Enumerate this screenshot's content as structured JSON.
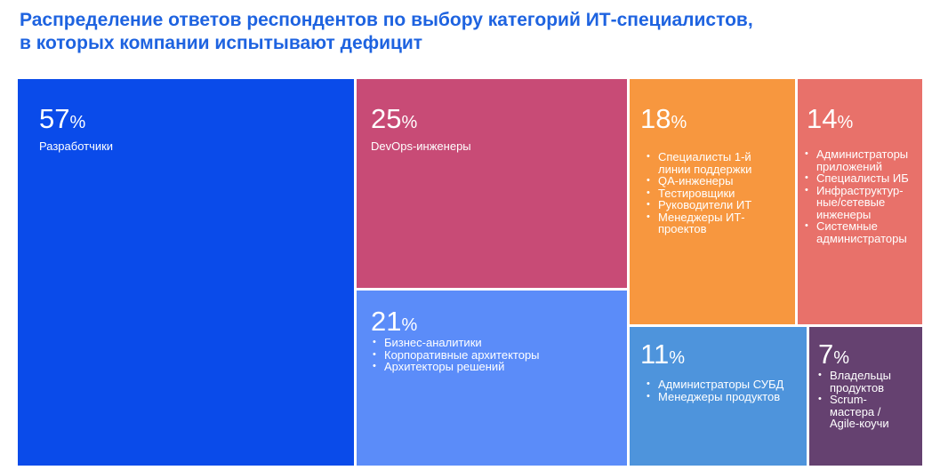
{
  "chart_data": {
    "type": "treemap",
    "title_lines": [
      "Распределение ответов респондентов по выбору категорий ИТ-специалистов,",
      "в которых компании испытывают дефицит"
    ],
    "unit": "%",
    "tiles": [
      {
        "value": 57,
        "color": "#0A4BEA",
        "label": "Разработчики",
        "items": []
      },
      {
        "value": 25,
        "color": "#C84B76",
        "label": "DevOps-инженеры",
        "items": []
      },
      {
        "value": 21,
        "color": "#5B8CF9",
        "label": "",
        "items": [
          "Бизнес-аналитики",
          "Корпоративные архитекторы",
          "Архитекторы решений"
        ]
      },
      {
        "value": 18,
        "color": "#F7973F",
        "label": "",
        "items": [
          "Специалисты 1-й линии поддержки",
          "QA-инженеры",
          "Тестировщики",
          "Руководители ИТ",
          "Менеджеры ИТ-проектов"
        ]
      },
      {
        "value": 14,
        "color": "#E8716A",
        "label": "",
        "items": [
          "Администраторы приложений",
          "Специалисты ИБ",
          "Инфраструктур-ные/сетевые инженеры",
          "Системные администраторы"
        ]
      },
      {
        "value": 11,
        "color": "#4E94DC",
        "label": "",
        "items": [
          "Администраторы СУБД",
          "Менеджеры продуктов"
        ]
      },
      {
        "value": 7,
        "color": "#654170",
        "label": "",
        "items": [
          "Владельцы продуктов",
          "Scrum-мастера / Agile-коучи"
        ]
      }
    ]
  }
}
